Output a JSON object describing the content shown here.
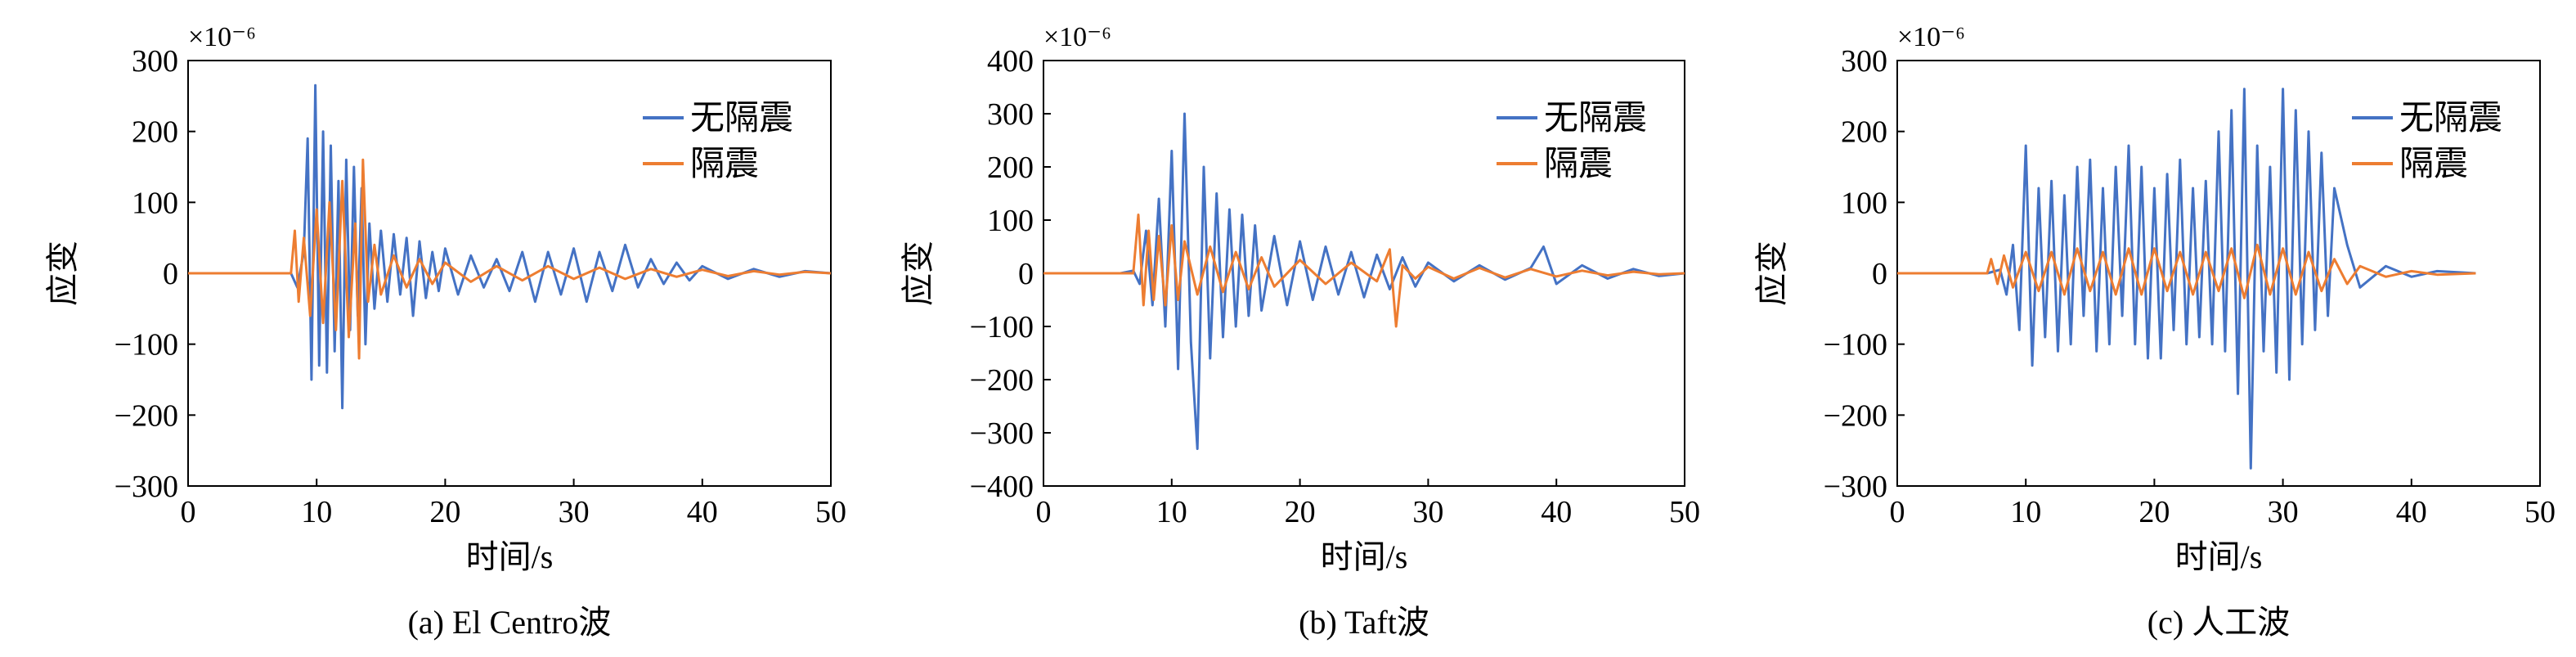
{
  "chart_data": [
    {
      "type": "line",
      "caption": "(a) El Centro波",
      "xlabel": "时间/s",
      "ylabel": "应变",
      "y_multiplier": "×10⁻⁶",
      "xlim": [
        0,
        50
      ],
      "ylim": [
        -300,
        300
      ],
      "xticks": [
        0,
        10,
        20,
        30,
        40,
        50
      ],
      "yticks": [
        -300,
        -200,
        -100,
        0,
        100,
        200,
        300
      ],
      "ytick_labels": [
        "−300",
        "−200",
        "−100",
        "0",
        "100",
        "200",
        "300"
      ],
      "legend_position": "top-right",
      "series": [
        {
          "name": "无隔震",
          "color": "#4472C4",
          "x": [
            0,
            2,
            4,
            6,
            8,
            8.5,
            9,
            9.3,
            9.6,
            9.9,
            10.2,
            10.5,
            10.8,
            11.1,
            11.4,
            11.7,
            12,
            12.3,
            12.6,
            12.9,
            13.2,
            13.5,
            13.8,
            14.1,
            14.5,
            15,
            15.5,
            16,
            16.5,
            17,
            17.5,
            18,
            18.5,
            19,
            19.5,
            20,
            21,
            22,
            23,
            24,
            25,
            26,
            27,
            28,
            29,
            30,
            31,
            32,
            33,
            34,
            35,
            36,
            37,
            38,
            39,
            40,
            42,
            44,
            46,
            48,
            50
          ],
          "values": [
            0,
            0,
            0,
            0,
            0,
            -20,
            30,
            190,
            -150,
            265,
            -130,
            200,
            -140,
            180,
            -110,
            130,
            -190,
            160,
            -80,
            150,
            -60,
            120,
            -100,
            70,
            -50,
            60,
            -40,
            55,
            -30,
            50,
            -60,
            45,
            -35,
            30,
            -25,
            35,
            -30,
            25,
            -20,
            20,
            -25,
            30,
            -40,
            30,
            -30,
            35,
            -40,
            30,
            -25,
            40,
            -20,
            20,
            -15,
            15,
            -10,
            10,
            -8,
            6,
            -5,
            3,
            0
          ]
        },
        {
          "name": "隔震",
          "color": "#ED7D31",
          "x": [
            0,
            2,
            4,
            6,
            8,
            8.3,
            8.6,
            9,
            9.5,
            10,
            10.5,
            11,
            11.5,
            12,
            12.5,
            13,
            13.3,
            13.6,
            14,
            14.5,
            15,
            16,
            17,
            18,
            19,
            20,
            22,
            24,
            26,
            28,
            30,
            32,
            34,
            36,
            38,
            40,
            42,
            44,
            46,
            48,
            50
          ],
          "values": [
            0,
            0,
            0,
            0,
            0,
            60,
            -40,
            50,
            -60,
            90,
            -70,
            100,
            -80,
            130,
            -90,
            70,
            -120,
            160,
            -40,
            40,
            -30,
            25,
            -20,
            20,
            -15,
            15,
            -12,
            10,
            -10,
            10,
            -8,
            8,
            -8,
            6,
            -5,
            5,
            -4,
            3,
            -2,
            2,
            0
          ]
        }
      ]
    },
    {
      "type": "line",
      "caption": "(b) Taft波",
      "xlabel": "时间/s",
      "ylabel": "应变",
      "y_multiplier": "×10⁻⁶",
      "xlim": [
        0,
        50
      ],
      "ylim": [
        -400,
        400
      ],
      "xticks": [
        0,
        10,
        20,
        30,
        40,
        50
      ],
      "yticks": [
        -400,
        -300,
        -200,
        -100,
        0,
        100,
        200,
        300,
        400
      ],
      "ytick_labels": [
        "−400",
        "−300",
        "−200",
        "−100",
        "0",
        "100",
        "200",
        "300",
        "400"
      ],
      "legend_position": "top-right",
      "series": [
        {
          "name": "无隔震",
          "color": "#4472C4",
          "x": [
            0,
            2,
            4,
            6,
            7,
            7.5,
            8,
            8.5,
            9,
            9.5,
            10,
            10.5,
            11,
            11.5,
            12,
            12.5,
            13,
            13.5,
            14,
            14.5,
            15,
            15.5,
            16,
            16.5,
            17,
            18,
            19,
            20,
            21,
            22,
            23,
            24,
            25,
            26,
            27,
            28,
            29,
            30,
            32,
            34,
            36,
            38,
            39,
            40,
            42,
            44,
            46,
            48,
            50
          ],
          "values": [
            0,
            0,
            0,
            0,
            5,
            -20,
            80,
            -60,
            140,
            -100,
            230,
            -180,
            300,
            -130,
            -330,
            200,
            -160,
            150,
            -120,
            120,
            -100,
            110,
            -80,
            90,
            -70,
            70,
            -60,
            60,
            -50,
            50,
            -40,
            40,
            -45,
            35,
            -30,
            30,
            -25,
            20,
            -15,
            15,
            -12,
            10,
            50,
            -20,
            15,
            -10,
            8,
            -5,
            0
          ]
        },
        {
          "name": "隔震",
          "color": "#ED7D31",
          "x": [
            0,
            2,
            4,
            6,
            7,
            7.4,
            7.8,
            8.2,
            8.6,
            9,
            9.5,
            10,
            10.5,
            11,
            12,
            13,
            14,
            15,
            16,
            17,
            18,
            20,
            22,
            24,
            26,
            27,
            27.5,
            28,
            29,
            30,
            32,
            34,
            36,
            38,
            40,
            42,
            44,
            46,
            48,
            50
          ],
          "values": [
            0,
            0,
            0,
            0,
            0,
            110,
            -60,
            80,
            -50,
            70,
            -60,
            90,
            -50,
            60,
            -40,
            50,
            -35,
            40,
            -30,
            30,
            -25,
            25,
            -20,
            20,
            -15,
            45,
            -100,
            15,
            -10,
            12,
            -10,
            10,
            -8,
            8,
            -6,
            5,
            -4,
            3,
            -2,
            0
          ]
        }
      ]
    },
    {
      "type": "line",
      "caption": "(c) 人工波",
      "xlabel": "时间/s",
      "ylabel": "应变",
      "y_multiplier": "×10⁻⁶",
      "xlim": [
        0,
        50
      ],
      "ylim": [
        -300,
        300
      ],
      "xticks": [
        0,
        10,
        20,
        30,
        40,
        50
      ],
      "yticks": [
        -300,
        -200,
        -100,
        0,
        100,
        200,
        300
      ],
      "ytick_labels": [
        "−300",
        "−200",
        "−100",
        "0",
        "100",
        "200",
        "300"
      ],
      "legend_position": "top-right",
      "series": [
        {
          "name": "无隔震",
          "color": "#4472C4",
          "x": [
            0,
            2,
            4,
            6,
            7,
            8,
            8.5,
            9,
            9.5,
            10,
            10.5,
            11,
            11.5,
            12,
            12.5,
            13,
            13.5,
            14,
            14.5,
            15,
            15.5,
            16,
            16.5,
            17,
            17.5,
            18,
            18.5,
            19,
            19.5,
            20,
            20.5,
            21,
            21.5,
            22,
            22.5,
            23,
            23.5,
            24,
            24.5,
            25,
            25.5,
            26,
            26.5,
            27,
            27.5,
            28,
            28.5,
            29,
            29.5,
            30,
            30.5,
            31,
            31.5,
            32,
            32.5,
            33,
            33.5,
            34,
            35,
            36,
            38,
            40,
            42,
            45
          ],
          "values": [
            0,
            0,
            0,
            0,
            0,
            5,
            -30,
            40,
            -80,
            180,
            -130,
            120,
            -90,
            130,
            -110,
            110,
            -100,
            150,
            -60,
            160,
            -110,
            120,
            -100,
            150,
            -60,
            180,
            -100,
            150,
            -120,
            120,
            -120,
            140,
            -80,
            160,
            -100,
            120,
            -90,
            130,
            -100,
            200,
            -110,
            230,
            -170,
            260,
            -275,
            180,
            -110,
            150,
            -140,
            260,
            -150,
            230,
            -100,
            200,
            -80,
            170,
            -60,
            120,
            40,
            -20,
            10,
            -5,
            3,
            0
          ]
        },
        {
          "name": "隔震",
          "color": "#ED7D31",
          "x": [
            0,
            2,
            4,
            6,
            7,
            7.3,
            7.8,
            8.3,
            9,
            10,
            11,
            12,
            13,
            14,
            15,
            16,
            17,
            18,
            19,
            20,
            21,
            22,
            23,
            24,
            25,
            26,
            27,
            28,
            29,
            30,
            31,
            32,
            33,
            34,
            35,
            36,
            38,
            40,
            42,
            45
          ],
          "values": [
            0,
            0,
            0,
            0,
            0,
            20,
            -15,
            25,
            -20,
            30,
            -25,
            30,
            -30,
            35,
            -25,
            30,
            -30,
            35,
            -30,
            35,
            -25,
            30,
            -30,
            30,
            -25,
            35,
            -35,
            40,
            -30,
            35,
            -30,
            30,
            -25,
            20,
            -15,
            10,
            -5,
            3,
            -2,
            0
          ]
        }
      ]
    }
  ]
}
